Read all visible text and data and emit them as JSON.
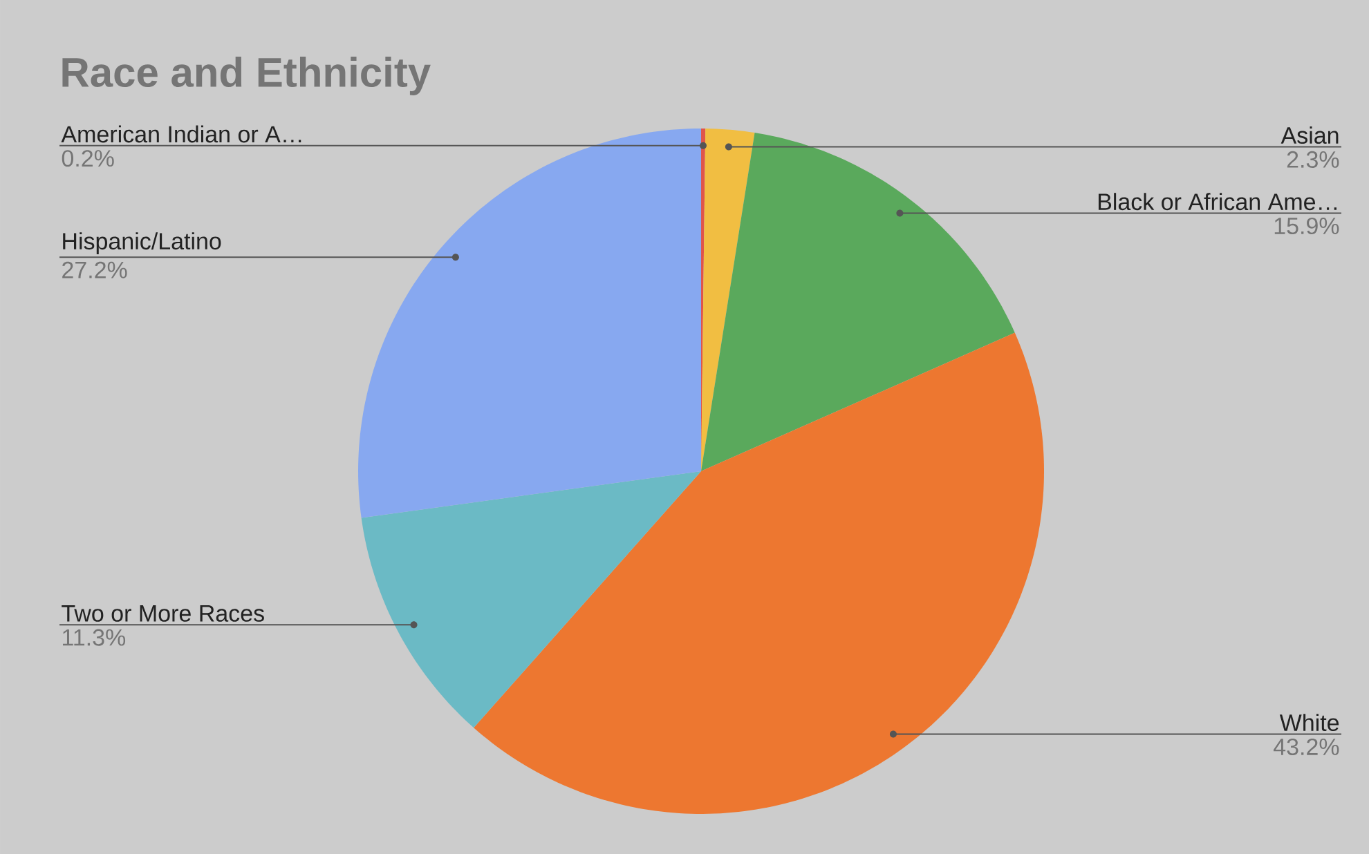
{
  "chart_data": {
    "type": "pie",
    "title": "Race and Ethnicity",
    "categories": [
      "American Indian or A…",
      "Asian",
      "Black or African Ame…",
      "White",
      "Two or More Races",
      "Hispanic/Latino"
    ],
    "values": [
      0.2,
      2.3,
      15.9,
      43.2,
      11.3,
      27.2
    ],
    "value_labels": [
      "0.2%",
      "2.3%",
      "15.9%",
      "43.2%",
      "11.3%",
      "27.2%"
    ],
    "colors": [
      "#e0554a",
      "#f1be42",
      "#5aa95c",
      "#ed7730",
      "#6bbac5",
      "#87a8f0"
    ]
  }
}
